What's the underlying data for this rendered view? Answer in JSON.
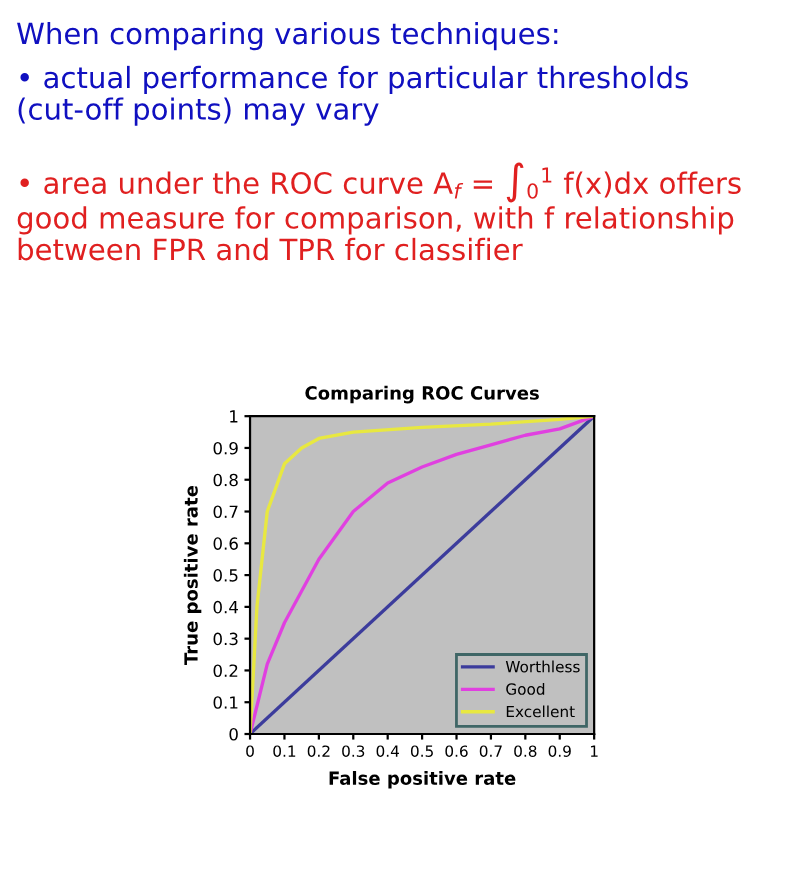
{
  "chart_data": {
    "type": "line",
    "title": "Comparing ROC Curves",
    "xlabel": "False positive rate",
    "ylabel": "True positive rate",
    "xlim": [
      0,
      1
    ],
    "ylim": [
      0,
      1
    ],
    "xticks": [
      0,
      0.1,
      0.2,
      0.3,
      0.4,
      0.5,
      0.6,
      0.7,
      0.8,
      0.9,
      1
    ],
    "yticks": [
      0,
      0.1,
      0.2,
      0.3,
      0.4,
      0.5,
      0.6,
      0.7,
      0.8,
      0.9,
      1
    ],
    "grid": false,
    "legend": "bottom right",
    "marker": "none",
    "line_style": "solid",
    "series": [
      {
        "name": "Worthless",
        "color": "#3c3c9c",
        "x": [
          0,
          1
        ],
        "values": [
          0,
          1
        ]
      },
      {
        "name": "Good",
        "color": "#e040e0",
        "x": [
          0,
          0.05,
          0.1,
          0.2,
          0.3,
          0.4,
          0.5,
          0.6,
          0.7,
          0.8,
          0.9,
          1
        ],
        "values": [
          0,
          0.22,
          0.35,
          0.55,
          0.7,
          0.79,
          0.84,
          0.88,
          0.91,
          0.94,
          0.96,
          1
        ]
      },
      {
        "name": "Excellent",
        "color": "#e8e840",
        "x": [
          0,
          0.02,
          0.05,
          0.1,
          0.15,
          0.2,
          0.3,
          0.5,
          0.7,
          0.9,
          1
        ],
        "values": [
          0,
          0.4,
          0.7,
          0.85,
          0.9,
          0.93,
          0.95,
          0.965,
          0.975,
          0.99,
          1
        ]
      }
    ],
    "annotations": [
      "When comparing various techniques:",
      "• actual performance for particular thresholds (cut-off points) may vary",
      "• area under the ROC curve A$_{f}$ = ∫$_{0}$$^{1}$ f(x)dx offers good measure for comparison, with f relationship between FPR and TPR for classifier"
    ]
  }
}
